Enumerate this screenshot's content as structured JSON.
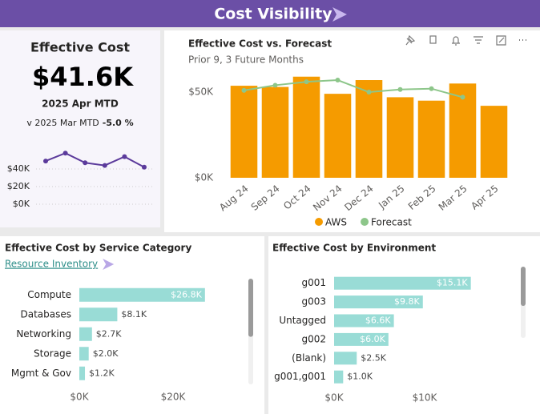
{
  "header": {
    "title": "Cost Visibility"
  },
  "kpi": {
    "title": "Effective Cost",
    "value": "$41.6K",
    "period": "2025 Apr MTD",
    "comparison": "v 2025 Mar MTD",
    "change": "-5.0 %"
  },
  "chart_data": [
    {
      "type": "line",
      "values": [
        49,
        58,
        47,
        44,
        54,
        42
      ],
      "color": "#5b3a9b",
      "ylim": [
        0,
        60
      ],
      "yticks": [
        {
          "value": 40,
          "label": "$40K"
        },
        {
          "value": 20,
          "label": "$20K"
        },
        {
          "value": 0,
          "label": "$0K"
        }
      ],
      "grid": true
    },
    {
      "type": "bar",
      "title": "Effective Cost vs. Forecast",
      "subtitle": "Prior 9, 3 Future Months",
      "categories": [
        "Aug 24",
        "Sep 24",
        "Oct 24",
        "Nov 24",
        "Dec 24",
        "Jan 25",
        "Feb 25",
        "Mar 25",
        "Apr 25"
      ],
      "series": [
        {
          "name": "AWS",
          "color": "#f59b00",
          "values": [
            53.7,
            53,
            59,
            49,
            57,
            47,
            45,
            55,
            42
          ]
        },
        {
          "name": "Forecast",
          "color": "#8dc68a",
          "type": "line",
          "values": [
            51,
            54,
            56,
            57,
            50,
            51.5,
            52,
            47,
            null
          ]
        }
      ],
      "ylim": [
        0,
        60
      ],
      "yticks": [
        {
          "value": 0,
          "label": "$0K"
        },
        {
          "value": 50,
          "label": "$50K"
        }
      ],
      "legend": "bottom"
    },
    {
      "type": "hbar",
      "title": "Effective Cost by Service Category",
      "link": "Resource Inventory",
      "categories": [
        "Compute",
        "Databases",
        "Networking",
        "Storage",
        "Mgmt & Gov"
      ],
      "values": [
        26.8,
        8.1,
        2.7,
        2.0,
        1.2
      ],
      "value_labels": [
        "$26.8K",
        "$8.1K",
        "$2.7K",
        "$2.0K",
        "$1.2K"
      ],
      "color": "#99dcd6",
      "xlim": [
        0,
        27
      ],
      "xticks": [
        {
          "value": 0,
          "label": "$0K"
        },
        {
          "value": 20,
          "label": "$20K"
        }
      ]
    },
    {
      "type": "hbar",
      "title": "Effective Cost by Environment",
      "categories": [
        "g001",
        "g003",
        "Untagged",
        "g002",
        "(Blank)",
        "g001,g001"
      ],
      "values": [
        15.1,
        9.8,
        6.6,
        6.0,
        2.5,
        1.0
      ],
      "value_labels": [
        "$15.1K",
        "$9.8K",
        "$6.6K",
        "$6.0K",
        "$2.5K",
        "$1.0K"
      ],
      "color": "#99dcd6",
      "xlim": [
        0,
        15.2
      ],
      "xticks": [
        {
          "value": 0,
          "label": "$0K"
        },
        {
          "value": 10,
          "label": "$10K"
        }
      ]
    }
  ]
}
